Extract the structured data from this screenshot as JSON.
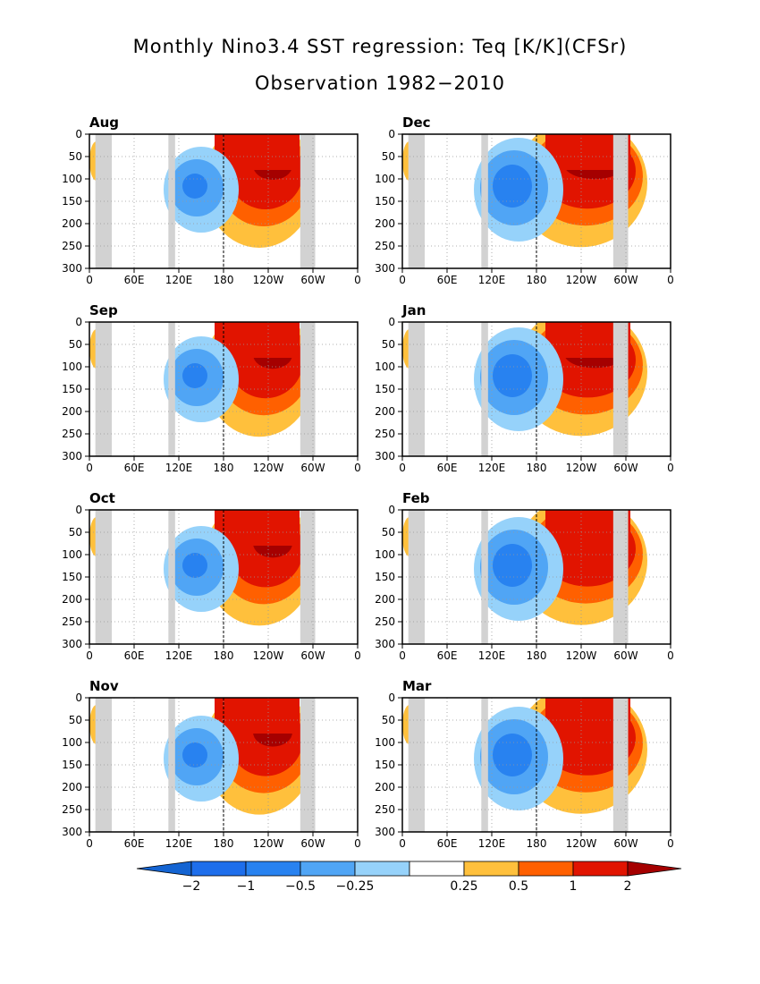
{
  "title": "Monthly Nino3.4 SST regression: Teq [K/K](CFSr)",
  "subtitle": "Observation 1982−2010",
  "colors": {
    "neg_extreme": "#1464d2",
    "neg_2": "#1e6eeb",
    "neg_1": "#2882f0",
    "neg_05": "#50a5f5",
    "neg_025": "#96d2fa",
    "pos_025": "#ffc03c",
    "pos_05": "#ff6000",
    "pos_1": "#e11400",
    "pos_2": "#a50000",
    "land": "#d2d2d2",
    "grid": "#999999"
  },
  "colorbar": {
    "labels": [
      "−2",
      "−1",
      "−0.5",
      "−0.25",
      "0.25",
      "0.5",
      "1",
      "2"
    ]
  },
  "chart_data": [
    {
      "type": "heatmap",
      "month": "Aug",
      "xticks": [
        "0",
        "60E",
        "120E",
        "180",
        "120W",
        "60W",
        "0"
      ],
      "yticks": [
        "0",
        "50",
        "100",
        "150",
        "200",
        "250",
        "300"
      ],
      "ylim": [
        300,
        0
      ],
      "xlim": [
        0,
        360
      ],
      "reference_line_x": 180,
      "land_bands_lon": [
        [
          8,
          30
        ],
        [
          106,
          115
        ],
        [
          283,
          303
        ]
      ],
      "max_positive": 2,
      "max_negative": -1
    },
    {
      "type": "heatmap",
      "month": "Dec",
      "xticks": [
        "0",
        "60E",
        "120E",
        "180",
        "120W",
        "60W",
        "0"
      ],
      "yticks": [
        "0",
        "50",
        "100",
        "150",
        "200",
        "250",
        "300"
      ],
      "ylim": [
        300,
        0
      ],
      "xlim": [
        0,
        360
      ],
      "reference_line_x": 180,
      "land_bands_lon": [
        [
          8,
          30
        ],
        [
          106,
          115
        ],
        [
          283,
          303
        ]
      ],
      "max_positive": 2,
      "max_negative": -1
    },
    {
      "type": "heatmap",
      "month": "Sep",
      "xticks": [
        "0",
        "60E",
        "120E",
        "180",
        "120W",
        "60W",
        "0"
      ],
      "yticks": [
        "0",
        "50",
        "100",
        "150",
        "200",
        "250",
        "300"
      ],
      "ylim": [
        300,
        0
      ],
      "xlim": [
        0,
        360
      ],
      "reference_line_x": 180,
      "land_bands_lon": [
        [
          8,
          30
        ],
        [
          106,
          115
        ],
        [
          283,
          303
        ]
      ],
      "max_positive": 2,
      "max_negative": -1
    },
    {
      "type": "heatmap",
      "month": "Jan",
      "xticks": [
        "0",
        "60E",
        "120E",
        "180",
        "120W",
        "60W",
        "0"
      ],
      "yticks": [
        "0",
        "50",
        "100",
        "150",
        "200",
        "250",
        "300"
      ],
      "ylim": [
        300,
        0
      ],
      "xlim": [
        0,
        360
      ],
      "reference_line_x": 180,
      "land_bands_lon": [
        [
          8,
          30
        ],
        [
          106,
          115
        ],
        [
          283,
          303
        ]
      ],
      "max_positive": 2,
      "max_negative": -1
    },
    {
      "type": "heatmap",
      "month": "Oct",
      "xticks": [
        "0",
        "60E",
        "120E",
        "180",
        "120W",
        "60W",
        "0"
      ],
      "yticks": [
        "0",
        "50",
        "100",
        "150",
        "200",
        "250",
        "300"
      ],
      "ylim": [
        300,
        0
      ],
      "xlim": [
        0,
        360
      ],
      "reference_line_x": 180,
      "land_bands_lon": [
        [
          8,
          30
        ],
        [
          106,
          115
        ],
        [
          283,
          303
        ]
      ],
      "max_positive": 2,
      "max_negative": -1
    },
    {
      "type": "heatmap",
      "month": "Feb",
      "xticks": [
        "0",
        "60E",
        "120E",
        "180",
        "120W",
        "60W",
        "0"
      ],
      "yticks": [
        "0",
        "50",
        "100",
        "150",
        "200",
        "250",
        "300"
      ],
      "ylim": [
        300,
        0
      ],
      "xlim": [
        0,
        360
      ],
      "reference_line_x": 180,
      "land_bands_lon": [
        [
          8,
          30
        ],
        [
          106,
          115
        ],
        [
          283,
          303
        ]
      ],
      "max_positive": 1,
      "max_negative": -1
    },
    {
      "type": "heatmap",
      "month": "Nov",
      "xticks": [
        "0",
        "60E",
        "120E",
        "180",
        "120W",
        "60W",
        "0"
      ],
      "yticks": [
        "0",
        "50",
        "100",
        "150",
        "200",
        "250",
        "300"
      ],
      "ylim": [
        300,
        0
      ],
      "xlim": [
        0,
        360
      ],
      "reference_line_x": 180,
      "land_bands_lon": [
        [
          8,
          30
        ],
        [
          106,
          115
        ],
        [
          283,
          303
        ]
      ],
      "max_positive": 2,
      "max_negative": -1
    },
    {
      "type": "heatmap",
      "month": "Mar",
      "xticks": [
        "0",
        "60E",
        "120E",
        "180",
        "120W",
        "60W",
        "0"
      ],
      "yticks": [
        "0",
        "50",
        "100",
        "150",
        "200",
        "250",
        "300"
      ],
      "ylim": [
        300,
        0
      ],
      "xlim": [
        0,
        360
      ],
      "reference_line_x": 180,
      "land_bands_lon": [
        [
          8,
          30
        ],
        [
          106,
          115
        ],
        [
          283,
          303
        ]
      ],
      "max_positive": 1,
      "max_negative": -1
    }
  ]
}
